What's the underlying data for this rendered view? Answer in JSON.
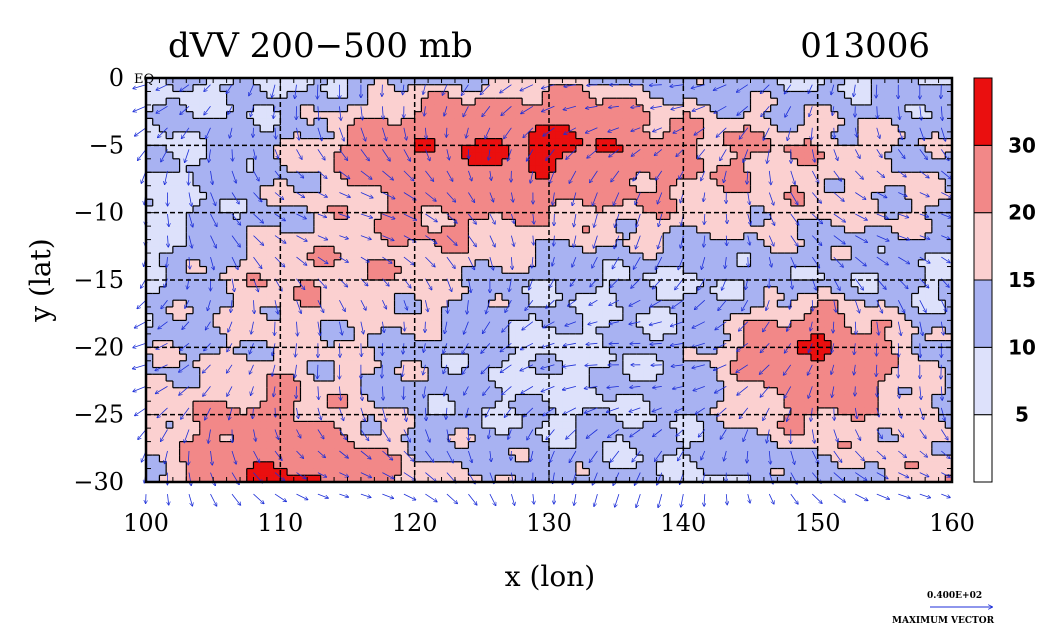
{
  "chart_data": {
    "type": "heatmap",
    "title": "dVV 200−500 mb",
    "time_label": "013006",
    "xlabel": "x (lon)",
    "ylabel": "y (lat)",
    "xlim": [
      100,
      160
    ],
    "ylim": [
      -30,
      0
    ],
    "x_ticks": [
      "100",
      "110",
      "120",
      "130",
      "140",
      "150",
      "160"
    ],
    "y_ticks": [
      "0",
      "−5",
      "−10",
      "−15",
      "−20",
      "−25",
      "−30"
    ],
    "equator_label": "EQ",
    "grid": true,
    "colorbar": {
      "levels": [
        0,
        5,
        10,
        15,
        20,
        30,
        40
      ],
      "labels": [
        "5",
        "10",
        "15",
        "20",
        "30"
      ],
      "colors": [
        "#ffffff",
        "#dde1fb",
        "#a8b2f2",
        "#fbd0d0",
        "#f28888",
        "#ea0f0f"
      ]
    },
    "reference_vector": {
      "value": "0.400E+02",
      "label": "MAXIMUM VECTOR",
      "color": "#1c2ed8"
    },
    "field_samples": {
      "lon": [
        100,
        110,
        120,
        130,
        140,
        150,
        160
      ],
      "lat": [
        0,
        -5,
        -10,
        -15,
        -20,
        -25,
        -30
      ],
      "values": [
        [
          10,
          8,
          13,
          17,
          12,
          9,
          10
        ],
        [
          9,
          14,
          28,
          34,
          22,
          19,
          13
        ],
        [
          7,
          14,
          22,
          20,
          18,
          17,
          15
        ],
        [
          10,
          20,
          18,
          11,
          9,
          11,
          9
        ],
        [
          13,
          16,
          14,
          8,
          12,
          32,
          12
        ],
        [
          17,
          23,
          12,
          9,
          11,
          22,
          14
        ],
        [
          15,
          33,
          18,
          14,
          9,
          12,
          20
        ]
      ]
    }
  }
}
